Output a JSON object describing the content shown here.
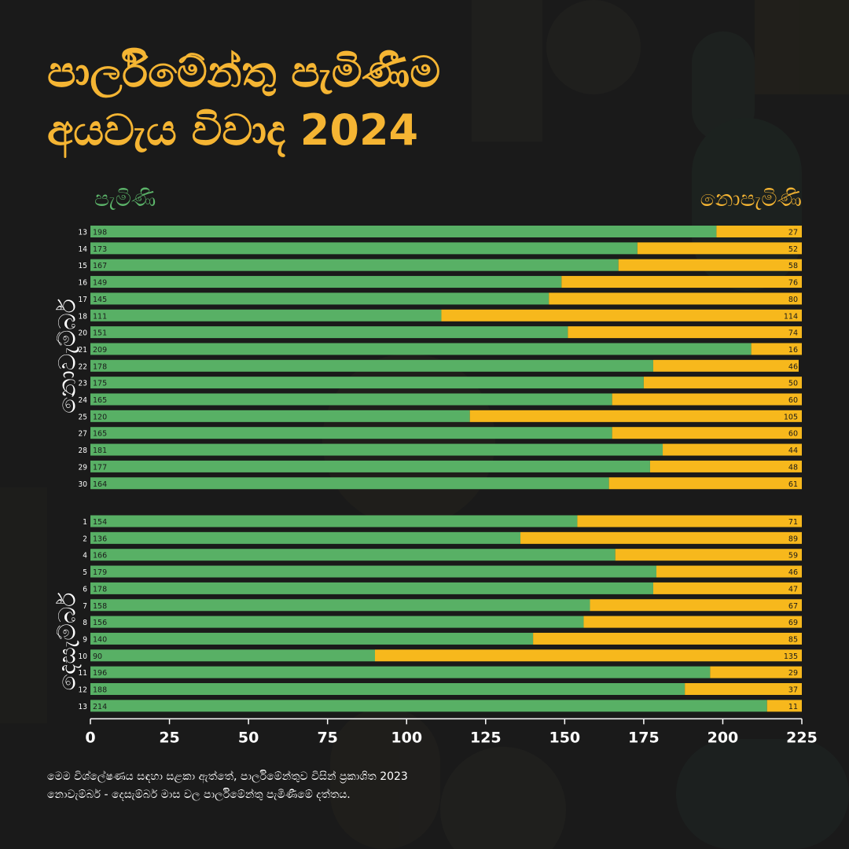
{
  "title": {
    "line1": "පාර්ලිමේන්තු පැමිණීම",
    "line2": "අයවැය විවාද 2024"
  },
  "legend": {
    "present": "පැමිණි",
    "absent": "නොපැමිණි"
  },
  "months": {
    "november": "නොවැම්බර්",
    "december": "දෙසැම්බර්"
  },
  "footnote": {
    "line1": "මෙම විශ්ලේෂණය සඳහා සළකා ඇත්තේ, පාර්ලිමේන්තුව විසින් ප්‍රකාශිත 2023",
    "line2": "නොවැම්බර් - දෙසැම්බර් මාස වල පාර්ලිමේන්තු පැමිණීමේ දත්තය."
  },
  "colors": {
    "present": "#58b065",
    "absent": "#f7b81c",
    "background": "#1a1a1a",
    "title": "#f5b533"
  },
  "chart_data": {
    "type": "bar",
    "orientation": "horizontal",
    "stacked": true,
    "xlim": [
      0,
      225
    ],
    "xticks": [
      0,
      25,
      50,
      75,
      100,
      125,
      150,
      175,
      200,
      225
    ],
    "grid": false,
    "groups": [
      {
        "name": "නොවැම්බර්",
        "categories": [
          "13",
          "14",
          "15",
          "16",
          "17",
          "18",
          "20",
          "21",
          "22",
          "23",
          "24",
          "25",
          "27",
          "28",
          "29",
          "30"
        ],
        "series": [
          {
            "name": "පැමිණි",
            "values": [
              198,
              173,
              167,
              149,
              145,
              111,
              151,
              209,
              178,
              175,
              165,
              120,
              165,
              181,
              177,
              164
            ]
          },
          {
            "name": "නොපැමිණි",
            "values": [
              27,
              52,
              58,
              76,
              80,
              114,
              74,
              16,
              46,
              50,
              60,
              105,
              60,
              44,
              48,
              61
            ]
          }
        ]
      },
      {
        "name": "දෙසැම්බර්",
        "categories": [
          "1",
          "2",
          "4",
          "5",
          "6",
          "7",
          "8",
          "9",
          "10",
          "11",
          "12",
          "13"
        ],
        "series": [
          {
            "name": "පැමිණි",
            "values": [
              154,
              136,
              166,
              179,
              178,
              158,
              156,
              140,
              90,
              196,
              188,
              214
            ]
          },
          {
            "name": "නොපැමිණි",
            "values": [
              71,
              89,
              59,
              46,
              47,
              67,
              69,
              85,
              135,
              29,
              37,
              11
            ]
          }
        ]
      }
    ]
  }
}
